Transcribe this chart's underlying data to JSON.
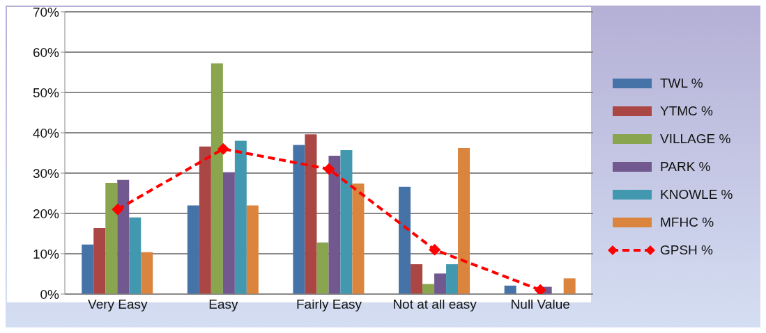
{
  "chart_data": {
    "type": "bar",
    "categories": [
      "Very Easy",
      "Easy",
      "Fairly Easy",
      "Not at all easy",
      "Null Value"
    ],
    "series": [
      {
        "name": "TWL %",
        "color": "#4572a7",
        "values": [
          12.3,
          22,
          37,
          26.6,
          2.1
        ]
      },
      {
        "name": "YTMC %",
        "color": "#aa4643",
        "values": [
          16.4,
          36.6,
          39.6,
          7.4,
          0
        ]
      },
      {
        "name": "VILLAGE %",
        "color": "#89a54e",
        "values": [
          27.6,
          57.2,
          12.8,
          2.5,
          0
        ]
      },
      {
        "name": "PARK %",
        "color": "#71588f",
        "values": [
          28.3,
          30.2,
          34.3,
          5.1,
          1.8
        ]
      },
      {
        "name": "KNOWLE %",
        "color": "#4198af",
        "values": [
          19,
          38,
          35.7,
          7.4,
          0
        ]
      },
      {
        "name": "MFHC %",
        "color": "#db843d",
        "values": [
          10.4,
          22,
          27.4,
          36.2,
          3.9
        ]
      },
      {
        "name": "GPSH %",
        "color": "#ff0000",
        "type": "line",
        "marker": "diamond",
        "line_style": "dashed",
        "values": [
          21,
          36,
          31,
          11,
          1
        ]
      }
    ],
    "ylim": [
      0,
      70
    ],
    "yticks": [
      {
        "value": 0,
        "label": "0%"
      },
      {
        "value": 10,
        "label": "10%"
      },
      {
        "value": 20,
        "label": "20%"
      },
      {
        "value": 30,
        "label": "30%"
      },
      {
        "value": 40,
        "label": "40%"
      },
      {
        "value": 50,
        "label": "50%"
      },
      {
        "value": 60,
        "label": "60%"
      },
      {
        "value": 70,
        "label": "70%"
      }
    ],
    "grid": "y",
    "legend": "right"
  }
}
